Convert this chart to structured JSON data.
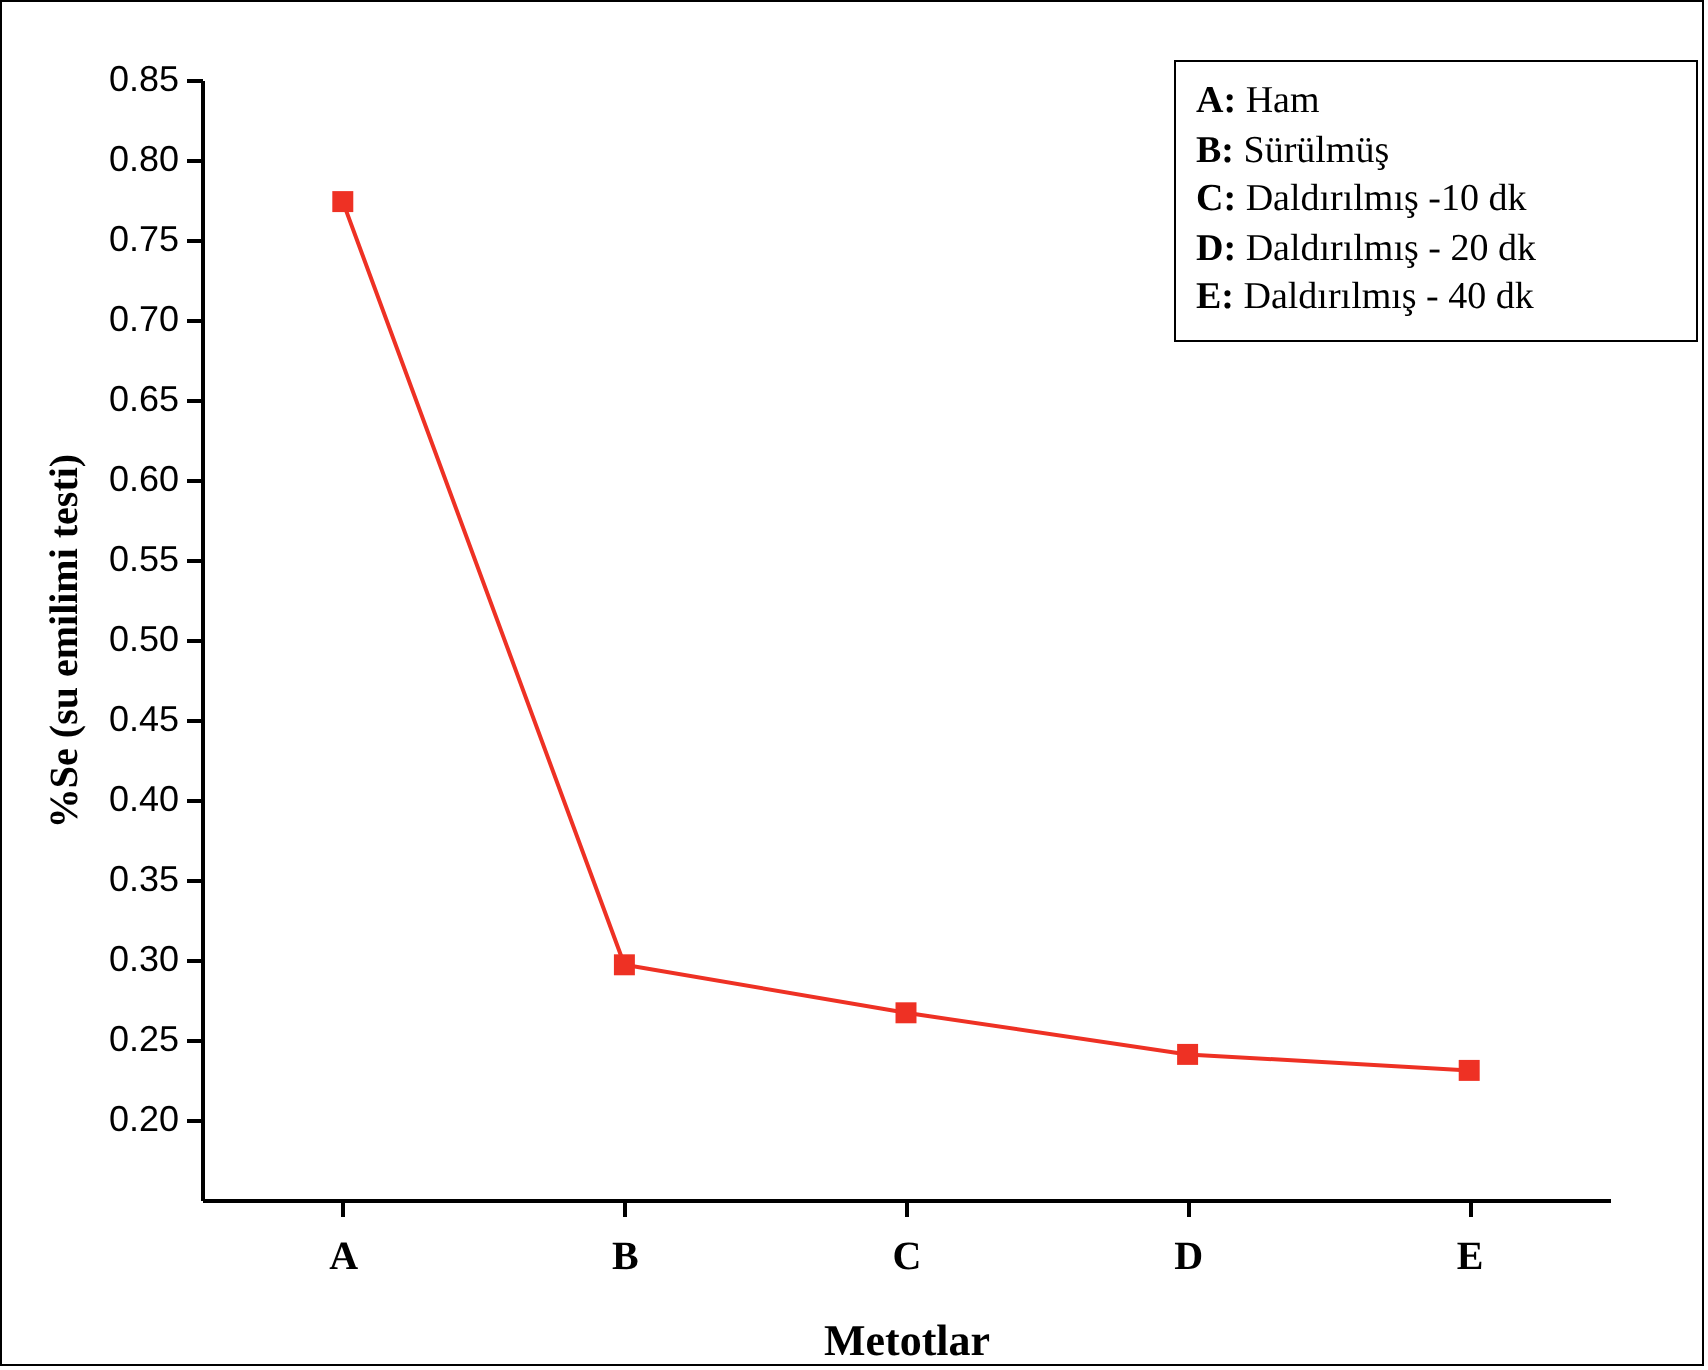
{
  "chart_data": {
    "type": "line",
    "xlabel": "Metotlar",
    "ylabel": "%Se (su emilimi testi)",
    "categories": [
      "A",
      "B",
      "C",
      "D",
      "E"
    ],
    "series": [
      {
        "color": "#ee3124",
        "values": [
          0.774,
          0.297,
          0.267,
          0.241,
          0.231
        ]
      }
    ],
    "ylim": [
      0.15,
      0.85
    ],
    "yticks": [
      {
        "value": 0.2,
        "label": "0.20"
      },
      0.25,
      {
        "value": 0.3,
        "label": "0.30"
      },
      0.35,
      {
        "value": 0.4,
        "label": "0.40"
      },
      0.45,
      {
        "value": 0.5,
        "label": "0.50"
      },
      0.55,
      {
        "value": 0.6,
        "label": "0.60"
      },
      0.65,
      {
        "value": 0.7,
        "label": "0.70"
      },
      0.75,
      {
        "value": 0.8,
        "label": "0.80"
      },
      0.85
    ],
    "marker": "square",
    "line_style": "solid",
    "grid": false,
    "legend": false,
    "annotations": [
      "A: Ham",
      "B: Sürülmüş",
      "C: Daldırılmış -10 dk",
      "D: Daldırılmış - 20 dk",
      "E: Daldırılmış - 40 dk"
    ]
  }
}
